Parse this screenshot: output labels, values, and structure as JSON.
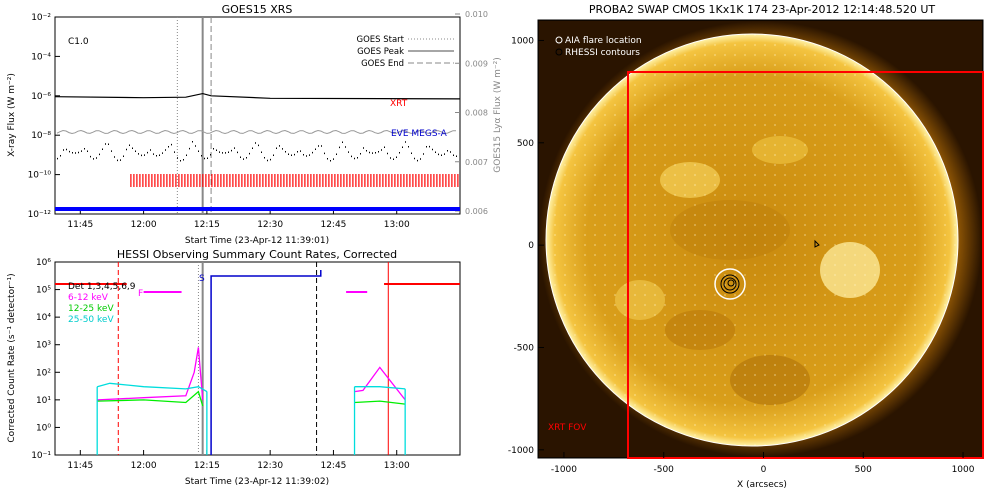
{
  "chart_data": [
    {
      "type": "line",
      "title": "GOES15 XRS",
      "xlabel": "Start Time (23-Apr-12 11:39:01)",
      "ylabel": "X-ray Flux (W m⁻²)",
      "y2label": "GOES15 Lyα Flux (W m⁻²)",
      "flare_class": "C1.0",
      "y_scale": "log",
      "ylim": [
        1e-12,
        0.01
      ],
      "y2lim": [
        0.006,
        0.01
      ],
      "x_ticks": [
        "11:45",
        "12:00",
        "12:15",
        "12:30",
        "12:45",
        "13:00"
      ],
      "y_ticks": [
        "10⁻¹²",
        "10⁻¹⁰",
        "10⁻⁸",
        "10⁻⁶",
        "10⁻⁴",
        "10⁻²"
      ],
      "y2_ticks": [
        "0.006",
        "0.007",
        "0.008",
        "0.009",
        "0.010"
      ],
      "legend": [
        {
          "label": "GOES Start",
          "style": "dotted"
        },
        {
          "label": "GOES Peak",
          "style": "solid"
        },
        {
          "label": "GOES End",
          "style": "dashed"
        }
      ],
      "markers": {
        "start": "12:08",
        "peak": "12:14",
        "end": "12:16"
      },
      "series_labels": {
        "xrt": "XRT",
        "eve": "EVE MEGS-A"
      },
      "series": [
        {
          "name": "XRT",
          "color": "#ff0000",
          "x": [
            "11:57",
            "13:15"
          ],
          "value": 1.5e-10
        },
        {
          "name": "EVE MEGS-A",
          "color": "#0000ff",
          "x": [
            "11:39",
            "13:15"
          ],
          "value": 1.2e-12
        },
        {
          "name": "GOES long",
          "color": "#000000",
          "x": [
            "11:39",
            "12:00",
            "12:10",
            "12:14",
            "12:16",
            "12:30",
            "13:15"
          ],
          "values": [
            9e-07,
            8e-07,
            8.5e-07,
            1.3e-06,
            1e-06,
            7.5e-07,
            7e-07
          ]
        }
      ]
    },
    {
      "type": "line",
      "title": "HESSI Observing Summary Count Rates, Corrected",
      "xlabel": "Start Time (23-Apr-12 11:39:02)",
      "ylabel": "Corrected Count Rate (s⁻¹ detector⁻¹)",
      "y_scale": "log",
      "ylim": [
        0.1,
        1000000
      ],
      "x_ticks": [
        "11:45",
        "12:00",
        "12:15",
        "12:30",
        "12:45",
        "13:00"
      ],
      "y_ticks": [
        "10⁻¹",
        "10⁰",
        "10¹",
        "10²",
        "10³",
        "10⁴",
        "10⁵",
        "10⁶"
      ],
      "legend": [
        {
          "label": "Det 1,3,4,5,6,9",
          "color": "#000000"
        },
        {
          "label": "6-12 keV",
          "color": "#ff00ff"
        },
        {
          "label": "12-25 keV",
          "color": "#00ee00"
        },
        {
          "label": "25-50 keV",
          "color": "#00dddd"
        }
      ],
      "flags": {
        "f": "F",
        "s": "S"
      },
      "series": [
        {
          "name": "6-12 keV",
          "color": "#ff00ff",
          "x": [
            "11:49",
            "12:00",
            "12:10",
            "12:12",
            "12:13",
            "12:14",
            "12:42",
            "12:50",
            "12:52",
            "12:56",
            "13:02"
          ],
          "values": [
            10,
            12,
            14,
            100,
            800,
            10,
            null,
            20,
            22,
            150,
            10
          ]
        },
        {
          "name": "12-25 keV",
          "color": "#00ee00",
          "x": [
            "11:49",
            "12:00",
            "12:10",
            "12:13",
            "12:14",
            "12:42",
            "12:50",
            "12:56",
            "13:02"
          ],
          "values": [
            9,
            10,
            8,
            20,
            6,
            null,
            8,
            9,
            7
          ]
        },
        {
          "name": "25-50 keV",
          "color": "#00dddd",
          "x": [
            "11:49",
            "11:52",
            "12:00",
            "12:10",
            "12:13",
            "12:15",
            "12:42",
            "12:50",
            "12:56",
            "13:02"
          ],
          "values": [
            30,
            40,
            30,
            25,
            30,
            20,
            null,
            30,
            30,
            25
          ]
        }
      ]
    },
    {
      "type": "heatmap",
      "title": "PROBA2 SWAP CMOS 1Kx1K 174 23-Apr-2012 12:14:48.520 UT",
      "xlabel": "X (arcsecs)",
      "ylabel": "",
      "xlim": [
        -1130,
        1100
      ],
      "ylim": [
        -1040,
        1100
      ],
      "x_ticks": [
        "-1000",
        "-500",
        "0",
        "500",
        "1000"
      ],
      "y_ticks": [
        "-1000",
        "-500",
        "0",
        "500",
        "1000"
      ],
      "legend": [
        {
          "label": "AIA flare location",
          "symbol": "○"
        },
        {
          "label": "RHESSI contours",
          "symbol": "○"
        }
      ],
      "fov_label": "XRT FOV",
      "flare_location": [
        -140,
        -290
      ],
      "colors": {
        "disk": "#d89a10",
        "limb": "#fff4a0",
        "fov": "#ff0000"
      }
    }
  ]
}
